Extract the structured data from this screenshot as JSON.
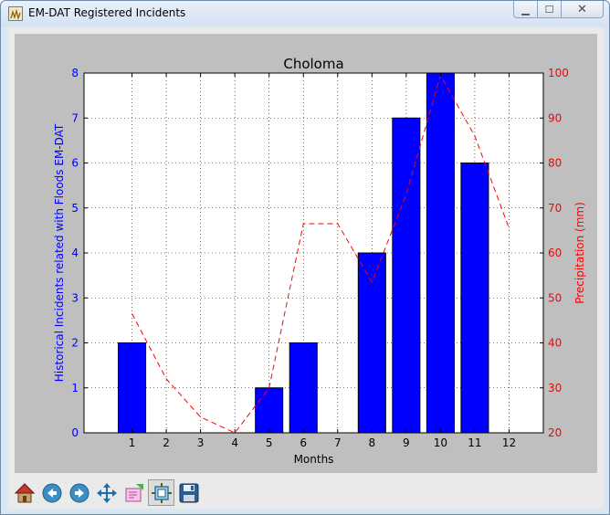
{
  "window": {
    "title": "EM-DAT Registered Incidents",
    "controls": {
      "minimize": "▁",
      "maximize": "☐",
      "close": "✕"
    }
  },
  "toolbar": {
    "buttons": [
      {
        "name": "home",
        "icon": "home-icon"
      },
      {
        "name": "back",
        "icon": "back-arrow-icon"
      },
      {
        "name": "forward",
        "icon": "forward-arrow-icon"
      },
      {
        "name": "pan",
        "icon": "pan-arrows-icon"
      },
      {
        "name": "zoom",
        "icon": "zoom-rectangle-icon"
      },
      {
        "name": "configure",
        "icon": "subplots-icon"
      },
      {
        "name": "save",
        "icon": "save-disk-icon"
      }
    ]
  },
  "chart_data": {
    "type": "bar",
    "title": "Choloma",
    "xlabel": "Months",
    "ylabel": "Historical Incidents related with Floods EM-DAT",
    "ylabel_right": "Precipitation (mm)",
    "categories": [
      "1",
      "2",
      "3",
      "4",
      "5",
      "6",
      "7",
      "8",
      "9",
      "10",
      "11",
      "12"
    ],
    "xlim": [
      -0.4,
      13
    ],
    "ylim": [
      0,
      8
    ],
    "ylim_right": [
      20,
      100
    ],
    "yticks": [
      0,
      1,
      2,
      3,
      4,
      5,
      6,
      7,
      8
    ],
    "yticks_right": [
      20,
      30,
      40,
      50,
      60,
      70,
      80,
      90,
      100
    ],
    "grid": true,
    "series": [
      {
        "axis": "left",
        "kind": "bar",
        "color": "#0000ff",
        "x": [
          1,
          2,
          3,
          4,
          5,
          6,
          7,
          8,
          9,
          10,
          11,
          12
        ],
        "values": [
          2,
          0,
          0,
          0,
          1,
          2,
          0,
          4,
          7,
          8,
          6,
          0
        ]
      },
      {
        "axis": "right",
        "kind": "line",
        "color": "#ff0000",
        "style": "dashed",
        "x": [
          1,
          2,
          3,
          4,
          5,
          6,
          7,
          8,
          9,
          10,
          11,
          12
        ],
        "values": [
          46.5,
          32,
          23.5,
          20,
          30,
          66.5,
          66.5,
          53.5,
          73,
          99.5,
          86,
          65.5
        ]
      }
    ],
    "colors": {
      "left_axis": "#0000ff",
      "right_axis": "#ff0000",
      "background": "#bfbfbf"
    }
  }
}
